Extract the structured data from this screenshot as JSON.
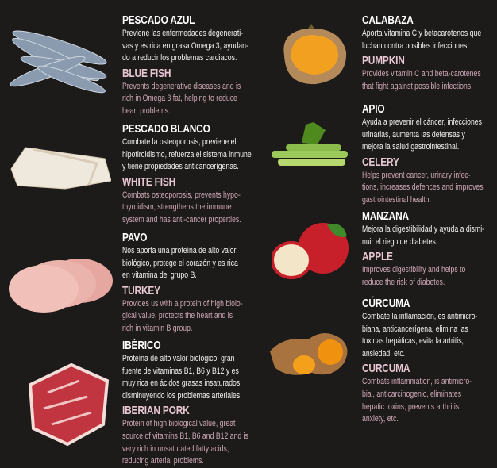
{
  "left": [
    {
      "id": "blue-fish",
      "es_title": "PESCADO AZUL",
      "es_lines": [
        "Previene las enfermedades degenerati-",
        "vas y es rica en grasa Omega 3, ayudan-",
        "do a reducir los problemas cardiacos."
      ],
      "en_title": "BLUE FISH",
      "en_lines": [
        "Prevents degenerative diseases and is",
        "rich in Omega 3 fat, helping to reduce",
        "heart problems."
      ],
      "icon": "sardines-image"
    },
    {
      "id": "white-fish",
      "es_title": "PESCADO BLANCO",
      "es_lines": [
        "Combate la osteoporosis, previene el",
        "hipotiroidismo, refuerza el sistema inmune",
        "y tiene propiedades anticancerígenas."
      ],
      "en_title": "WHITE FISH",
      "en_lines": [
        "Combats osteoporosis, prevents hypo-",
        "thyroidism, strengthens the immune",
        "system and has anti-cancer properties."
      ],
      "icon": "white-fish-fillet-image"
    },
    {
      "id": "turkey",
      "es_title": "PAVO",
      "es_lines": [
        "Nos aporta una proteína de alto valor",
        "biológico, protege el corazón y es rica",
        "en vitamina del grupo B."
      ],
      "en_title": "TURKEY",
      "en_lines": [
        "Provides us with a protein of high biolo-",
        "gical value, protects the heart and is",
        "rich in vitamin B group."
      ],
      "icon": "turkey-breast-image"
    },
    {
      "id": "iberian-pork",
      "es_title": "IBÉRICO",
      "es_lines": [
        "Proteína de alto valor biológico, gran",
        "fuente de vitaminas B1, B6 y B12 y es",
        "muy rica en ácidos grasas insaturados",
        "disminuyendo los problemas arteriales."
      ],
      "en_title": "IBERIAN PORK",
      "en_lines": [
        "Protein of high biological value, great",
        "source of vitamins B1, B6 and B12 and is",
        "very rich in unsaturated fatty acids,",
        "reducing arterial problems."
      ],
      "icon": "pork-steak-image"
    }
  ],
  "right": [
    {
      "id": "pumpkin",
      "es_title": "CALABAZA",
      "es_lines": [
        "Aporta vitamina C y betacarotenos que",
        "luchan contra posibles infecciones."
      ],
      "en_title": "PUMPKIN",
      "en_lines": [
        "Provides vitamin C and beta-carotenes",
        "that fight against possible infections."
      ],
      "icon": "pumpkin-image"
    },
    {
      "id": "celery",
      "es_title": "APIO",
      "es_lines": [
        "Ayuda a prevenir el cáncer, infecciones",
        "urinarias, aumenta las defensas y",
        "mejora la salud gastrointestinal."
      ],
      "en_title": "CELERY",
      "en_lines": [
        "Helps prevent cancer, urinary infec-",
        "tions, increases defences and improves",
        "gastrointestinal health."
      ],
      "icon": "celery-image"
    },
    {
      "id": "apple",
      "es_title": "MANZANA",
      "es_lines": [
        "Mejora la digestibilidad y ayuda a dismi-",
        "nuir el riego de diabetes."
      ],
      "en_title": "APPLE",
      "en_lines": [
        "Improves digestibility and helps to",
        "reduce the risk of diabetes."
      ],
      "icon": "apple-image"
    },
    {
      "id": "curcuma",
      "es_title": "CÚRCUMA",
      "es_lines": [
        "Combate la inflamación, es antimicro-",
        "biana, anticancerígena, elimina las",
        "toxinas hepáticas, evita la artritis,",
        "ansiedad, etc."
      ],
      "en_title": "CURCUMA",
      "en_lines": [
        "Combats inflammation, is antimicro-",
        "bial, anticarcinogenic, eliminates",
        "hepatic toxins, prevents arthritis,",
        "anxiety, etc."
      ],
      "icon": "turmeric-root-image"
    }
  ],
  "colors": {
    "background": "#1d1b1a",
    "title": "#ffffff",
    "english_title": "#e6c6d3",
    "english_text": "#cfa9b9"
  }
}
